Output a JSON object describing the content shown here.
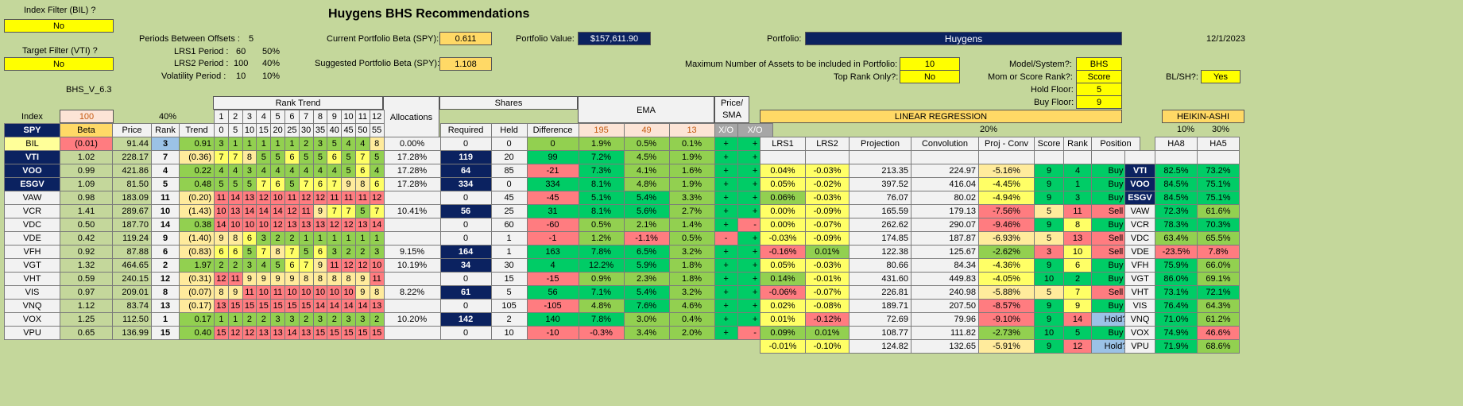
{
  "header": {
    "title": "Huygens BHS Recommendations",
    "date": "12/1/2023",
    "version": "BHS_V_6.3"
  },
  "filters": {
    "index_filter_label": "Index Filter (BIL) ?",
    "index_filter_value": "No",
    "target_filter_label": "Target Filter (VTI) ?",
    "target_filter_value": "No"
  },
  "periods": {
    "offsets_label": "Periods Between Offsets :",
    "offsets_value": "5",
    "lrs1_label": "LRS1 Period :",
    "lrs1_value": "60",
    "lrs1_pct": "50%",
    "lrs2_label": "LRS2 Period :",
    "lrs2_value": "100",
    "lrs2_pct": "40%",
    "vol_label": "Volatility Period :",
    "vol_value": "10",
    "vol_pct": "10%"
  },
  "portfolio": {
    "current_beta_label": "Current Portfolio Beta (SPY):",
    "current_beta_value": "0.611",
    "suggested_beta_label": "Suggested Portfolio Beta (SPY):",
    "suggested_beta_value": "1.108",
    "value_label": "Portfolio Value:",
    "value": "$157,611.90",
    "portfolio_label": "Portfolio:",
    "portfolio_name": "Huygens",
    "max_assets_label": "Maximum Number of Assets to be included in Portfolio:",
    "max_assets_value": "10",
    "top_rank_label": "Top Rank Only?:",
    "top_rank_value": "No",
    "model_label": "Model/System?:",
    "model_value": "BHS",
    "mom_label": "Mom or Score Rank?:",
    "mom_value": "Score",
    "hold_floor_label": "Hold Floor:",
    "hold_floor_value": "5",
    "buy_floor_label": "Buy Floor:",
    "buy_floor_value": "9",
    "blsh_label": "BL/SH?:",
    "blsh_value": "Yes"
  },
  "table_headers": {
    "index": "Index",
    "index_val": "100",
    "pct40": "40%",
    "rank_trend": "Rank Trend",
    "rank_trend_nums": [
      "1",
      "2",
      "3",
      "4",
      "5",
      "6",
      "7",
      "8",
      "9",
      "10",
      "11",
      "12"
    ],
    "rank_trend_offsets": [
      "0",
      "5",
      "10",
      "15",
      "20",
      "25",
      "30",
      "35",
      "40",
      "45",
      "50",
      "55"
    ],
    "allocations": "Allocations",
    "shares": "Shares",
    "required": "Required",
    "held": "Held",
    "difference": "Difference",
    "ema": "EMA",
    "ema_periods": [
      "195",
      "49",
      "13"
    ],
    "xo": "X/O",
    "price_sma": "Price/ SMA",
    "xo2": "X/O",
    "spy": "SPY",
    "beta": "Beta",
    "price": "Price",
    "rank": "Rank",
    "trend": "Trend",
    "linear_regression": "LINEAR REGRESSION",
    "lr_pct": "20%",
    "lrs1": "LRS1",
    "lrs2": "LRS2",
    "projection": "Projection",
    "convolution": "Convolution",
    "proj_conv": "Proj - Conv",
    "score": "Score",
    "rank2": "Rank",
    "position": "Position",
    "heikin_ashi": "HEIKIN-ASHI",
    "ha_pct1": "10%",
    "ha_pct2": "30%",
    "ha8": "HA8",
    "ha5": "HA5"
  },
  "rows": [
    {
      "ticker": "BIL",
      "beta": "(0.01)",
      "price": "91.44",
      "rank": "3",
      "trend": "0.91",
      "rt": [
        "3",
        "1",
        "1",
        "1",
        "1",
        "2",
        "3",
        "5",
        "4",
        "4",
        "8",
        ""
      ],
      "rt_full": [
        "3",
        "1",
        "1",
        "1",
        "1",
        "1",
        "2",
        "3",
        "5",
        "4",
        "4",
        "8"
      ],
      "alloc": "0.00%",
      "req": "0",
      "held": "0",
      "diff": "0",
      "e1": "1.9%",
      "e2": "0.5%",
      "e3": "0.1%",
      "xo": "+",
      "xo2": "+",
      "lrs1": "",
      "lrs2": "",
      "proj": "",
      "conv": "",
      "pc": "",
      "score": "",
      "rank2": "",
      "pos": "",
      "ha8": "",
      "ha5": ""
    },
    {
      "ticker": "VTI",
      "beta": "1.02",
      "price": "228.17",
      "rank": "7",
      "trend": "(0.36)",
      "rt_full": [
        "7",
        "7",
        "8",
        "5",
        "5",
        "6",
        "5",
        "5",
        "6",
        "5",
        "7",
        "5"
      ],
      "alloc": "17.28%",
      "req": "119",
      "held": "20",
      "diff": "99",
      "e1": "7.2%",
      "e2": "4.5%",
      "e3": "1.9%",
      "xo": "+",
      "xo2": "+",
      "lrs1": "0.04%",
      "lrs2": "-0.03%",
      "proj": "213.35",
      "conv": "224.97",
      "pc": "-5.16%",
      "score": "9",
      "rank2": "4",
      "pos": "Buy",
      "ha8": "82.5%",
      "ha5": "73.2%"
    },
    {
      "ticker": "VOO",
      "beta": "0.99",
      "price": "421.86",
      "rank": "4",
      "trend": "0.22",
      "rt_full": [
        "4",
        "4",
        "3",
        "4",
        "4",
        "4",
        "4",
        "4",
        "4",
        "5",
        "6",
        "4"
      ],
      "alloc": "17.28%",
      "req": "64",
      "held": "85",
      "diff": "-21",
      "e1": "7.3%",
      "e2": "4.1%",
      "e3": "1.6%",
      "xo": "+",
      "xo2": "+",
      "lrs1": "0.05%",
      "lrs2": "-0.02%",
      "proj": "397.52",
      "conv": "416.04",
      "pc": "-4.45%",
      "score": "9",
      "rank2": "1",
      "pos": "Buy",
      "ha8": "84.5%",
      "ha5": "75.1%"
    },
    {
      "ticker": "ESGV",
      "beta": "1.09",
      "price": "81.50",
      "rank": "5",
      "trend": "0.48",
      "rt_full": [
        "5",
        "5",
        "5",
        "7",
        "6",
        "5",
        "7",
        "6",
        "7",
        "9",
        "8",
        "6"
      ],
      "alloc": "17.28%",
      "req": "334",
      "held": "0",
      "diff": "334",
      "e1": "8.1%",
      "e2": "4.8%",
      "e3": "1.9%",
      "xo": "+",
      "xo2": "+",
      "lrs1": "0.06%",
      "lrs2": "-0.03%",
      "proj": "76.07",
      "conv": "80.02",
      "pc": "-4.94%",
      "score": "9",
      "rank2": "3",
      "pos": "Buy",
      "ha8": "84.5%",
      "ha5": "75.1%"
    },
    {
      "ticker": "VAW",
      "beta": "0.98",
      "price": "183.09",
      "rank": "11",
      "trend": "(0.20)",
      "rt_full": [
        "11",
        "14",
        "13",
        "12",
        "10",
        "11",
        "12",
        "12",
        "11",
        "11",
        "11",
        "12"
      ],
      "alloc": "",
      "req": "0",
      "held": "45",
      "diff": "-45",
      "e1": "5.1%",
      "e2": "5.4%",
      "e3": "3.3%",
      "xo": "+",
      "xo2": "+",
      "lrs1": "0.00%",
      "lrs2": "-0.09%",
      "proj": "165.59",
      "conv": "179.13",
      "pc": "-7.56%",
      "score": "5",
      "rank2": "11",
      "pos": "Sell",
      "ha8": "72.3%",
      "ha5": "61.6%"
    },
    {
      "ticker": "VCR",
      "beta": "1.41",
      "price": "289.67",
      "rank": "10",
      "trend": "(1.43)",
      "rt_full": [
        "10",
        "13",
        "14",
        "14",
        "14",
        "12",
        "11",
        "9",
        "7",
        "7",
        "5",
        "7"
      ],
      "alloc": "10.41%",
      "req": "56",
      "held": "25",
      "diff": "31",
      "e1": "8.1%",
      "e2": "5.6%",
      "e3": "2.7%",
      "xo": "+",
      "xo2": "+",
      "lrs1": "0.00%",
      "lrs2": "-0.07%",
      "proj": "262.62",
      "conv": "290.07",
      "pc": "-9.46%",
      "score": "9",
      "rank2": "8",
      "pos": "Buy",
      "ha8": "78.3%",
      "ha5": "70.3%"
    },
    {
      "ticker": "VDC",
      "beta": "0.50",
      "price": "187.70",
      "rank": "14",
      "trend": "0.38",
      "rt_full": [
        "14",
        "10",
        "10",
        "10",
        "12",
        "13",
        "13",
        "13",
        "12",
        "12",
        "13",
        "14"
      ],
      "alloc": "",
      "req": "0",
      "held": "60",
      "diff": "-60",
      "e1": "0.5%",
      "e2": "2.1%",
      "e3": "1.4%",
      "xo": "+",
      "xo2": "-",
      "lrs1": "-0.03%",
      "lrs2": "-0.09%",
      "proj": "174.85",
      "conv": "187.87",
      "pc": "-6.93%",
      "score": "5",
      "rank2": "13",
      "pos": "Sell",
      "ha8": "63.4%",
      "ha5": "65.5%"
    },
    {
      "ticker": "VDE",
      "beta": "0.42",
      "price": "119.24",
      "rank": "9",
      "trend": "(1.40)",
      "rt_full": [
        "9",
        "8",
        "6",
        "3",
        "2",
        "2",
        "1",
        "1",
        "1",
        "1",
        "1",
        "1"
      ],
      "alloc": "",
      "req": "0",
      "held": "1",
      "diff": "-1",
      "e1": "1.2%",
      "e2": "-1.1%",
      "e3": "0.5%",
      "xo": "-",
      "xo2": "+",
      "lrs1": "-0.16%",
      "lrs2": "0.01%",
      "proj": "122.38",
      "conv": "125.67",
      "pc": "-2.62%",
      "score": "3",
      "rank2": "10",
      "pos": "Sell",
      "ha8": "-23.5%",
      "ha5": "7.8%"
    },
    {
      "ticker": "VFH",
      "beta": "0.92",
      "price": "87.88",
      "rank": "6",
      "trend": "(0.83)",
      "rt_full": [
        "6",
        "6",
        "5",
        "7",
        "8",
        "7",
        "5",
        "6",
        "3",
        "2",
        "2",
        "3"
      ],
      "alloc": "9.15%",
      "req": "164",
      "held": "1",
      "diff": "163",
      "e1": "7.8%",
      "e2": "6.5%",
      "e3": "3.2%",
      "xo": "+",
      "xo2": "+",
      "lrs1": "0.05%",
      "lrs2": "-0.03%",
      "proj": "80.66",
      "conv": "84.34",
      "pc": "-4.36%",
      "score": "9",
      "rank2": "6",
      "pos": "Buy",
      "ha8": "75.9%",
      "ha5": "66.0%"
    },
    {
      "ticker": "VGT",
      "beta": "1.32",
      "price": "464.65",
      "rank": "2",
      "trend": "1.97",
      "rt_full": [
        "2",
        "2",
        "3",
        "4",
        "5",
        "6",
        "7",
        "9",
        "11",
        "12",
        "12",
        "10"
      ],
      "alloc": "10.19%",
      "req": "34",
      "held": "30",
      "diff": "4",
      "e1": "12.2%",
      "e2": "5.9%",
      "e3": "1.8%",
      "xo": "+",
      "xo2": "+",
      "lrs1": "0.14%",
      "lrs2": "-0.01%",
      "proj": "431.60",
      "conv": "449.83",
      "pc": "-4.05%",
      "score": "10",
      "rank2": "2",
      "pos": "Buy",
      "ha8": "86.0%",
      "ha5": "69.1%"
    },
    {
      "ticker": "VHT",
      "beta": "0.59",
      "price": "240.15",
      "rank": "12",
      "trend": "(0.31)",
      "rt_full": [
        "12",
        "11",
        "9",
        "9",
        "9",
        "9",
        "8",
        "8",
        "8",
        "8",
        "9",
        "11"
      ],
      "alloc": "",
      "req": "0",
      "held": "15",
      "diff": "-15",
      "e1": "0.9%",
      "e2": "2.3%",
      "e3": "1.8%",
      "xo": "+",
      "xo2": "+",
      "lrs1": "-0.06%",
      "lrs2": "-0.07%",
      "proj": "226.81",
      "conv": "240.98",
      "pc": "-5.88%",
      "score": "5",
      "rank2": "7",
      "pos": "Sell",
      "ha8": "73.1%",
      "ha5": "72.1%"
    },
    {
      "ticker": "VIS",
      "beta": "0.97",
      "price": "209.01",
      "rank": "8",
      "trend": "(0.07)",
      "rt_full": [
        "8",
        "9",
        "11",
        "10",
        "11",
        "10",
        "10",
        "10",
        "10",
        "10",
        "9",
        "8"
      ],
      "alloc": "8.22%",
      "req": "61",
      "held": "5",
      "diff": "56",
      "e1": "7.1%",
      "e2": "5.4%",
      "e3": "3.2%",
      "xo": "+",
      "xo2": "+",
      "lrs1": "0.02%",
      "lrs2": "-0.08%",
      "proj": "189.71",
      "conv": "207.50",
      "pc": "-8.57%",
      "score": "9",
      "rank2": "9",
      "pos": "Buy",
      "ha8": "76.4%",
      "ha5": "64.3%"
    },
    {
      "ticker": "VNQ",
      "beta": "1.12",
      "price": "83.74",
      "rank": "13",
      "trend": "(0.17)",
      "rt_full": [
        "13",
        "15",
        "15",
        "15",
        "15",
        "15",
        "15",
        "14",
        "14",
        "14",
        "14",
        "13"
      ],
      "alloc": "",
      "req": "0",
      "held": "105",
      "diff": "-105",
      "e1": "4.8%",
      "e2": "7.6%",
      "e3": "4.6%",
      "xo": "+",
      "xo2": "+",
      "lrs1": "0.01%",
      "lrs2": "-0.12%",
      "proj": "72.69",
      "conv": "79.96",
      "pc": "-9.10%",
      "score": "9",
      "rank2": "14",
      "pos": "Hold?",
      "ha8": "71.0%",
      "ha5": "61.2%"
    },
    {
      "ticker": "VOX",
      "beta": "1.25",
      "price": "112.50",
      "rank": "1",
      "trend": "0.17",
      "rt_full": [
        "1",
        "1",
        "2",
        "2",
        "3",
        "3",
        "2",
        "3",
        "2",
        "3",
        "3",
        "2"
      ],
      "alloc": "10.20%",
      "req": "142",
      "held": "2",
      "diff": "140",
      "e1": "7.8%",
      "e2": "3.0%",
      "e3": "0.4%",
      "xo": "+",
      "xo2": "+",
      "lrs1": "0.09%",
      "lrs2": "0.01%",
      "proj": "108.77",
      "conv": "111.82",
      "pc": "-2.73%",
      "score": "10",
      "rank2": "5",
      "pos": "Buy",
      "ha8": "74.9%",
      "ha5": "46.6%"
    },
    {
      "ticker": "VPU",
      "beta": "0.65",
      "price": "136.99",
      "rank": "15",
      "trend": "0.40",
      "rt_full": [
        "15",
        "12",
        "12",
        "13",
        "13",
        "14",
        "13",
        "15",
        "15",
        "15",
        "15",
        "15"
      ],
      "alloc": "",
      "req": "0",
      "held": "10",
      "diff": "-10",
      "e1": "-0.3%",
      "e2": "3.4%",
      "e3": "2.0%",
      "xo": "+",
      "xo2": "-",
      "lrs1": "-0.01%",
      "lrs2": "-0.10%",
      "proj": "124.82",
      "conv": "132.65",
      "pc": "-5.91%",
      "score": "9",
      "rank2": "12",
      "pos": "Hold?",
      "ha8": "71.9%",
      "ha5": "68.6%"
    }
  ]
}
